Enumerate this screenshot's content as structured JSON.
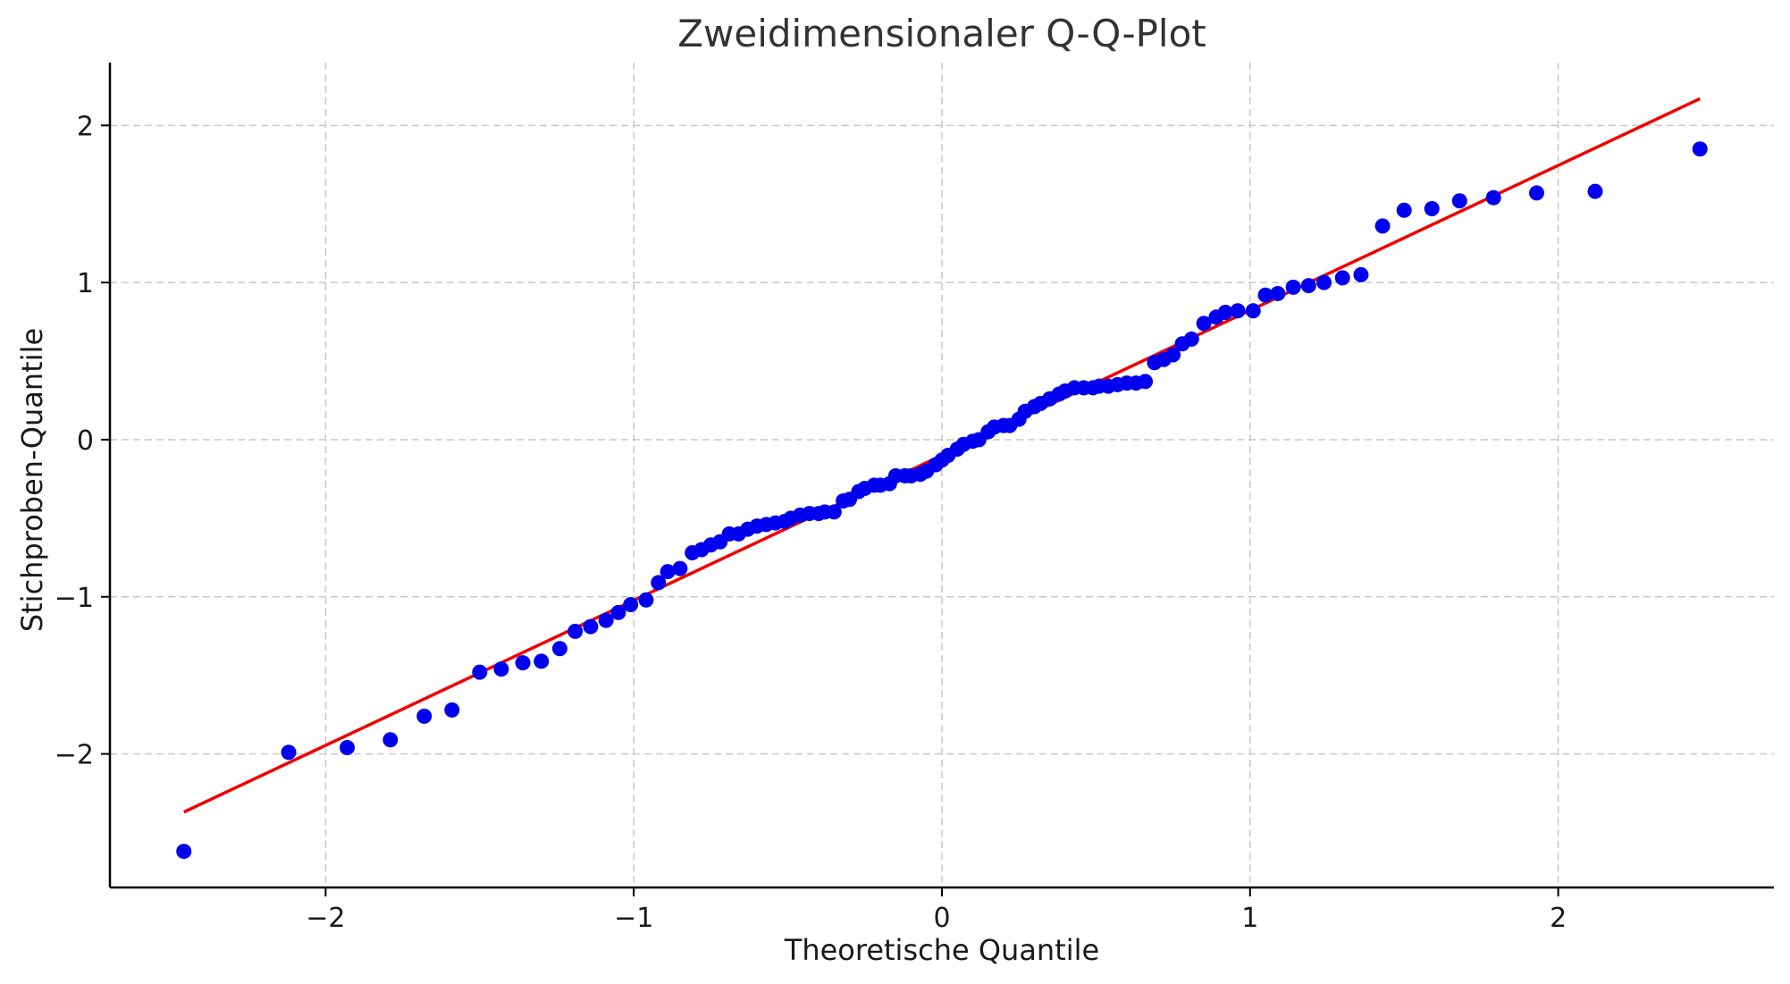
{
  "chart_data": {
    "type": "scatter",
    "title": "Zweidimensionaler Q-Q-Plot",
    "xlabel": "Theoretische Quantile",
    "ylabel": "Stichproben-Quantile",
    "xlim": [
      -2.7,
      2.7
    ],
    "ylim": [
      -2.85,
      2.4
    ],
    "xticks": [
      -2,
      -1,
      0,
      1,
      2
    ],
    "yticks": [
      -2,
      -1,
      0,
      1,
      2
    ],
    "xtick_labels": [
      "−2",
      "−1",
      "0",
      "1",
      "2"
    ],
    "ytick_labels": [
      "−2",
      "−1",
      "0",
      "1",
      "2"
    ],
    "grid": true,
    "point_color": "#0000ee",
    "line_color": "#ee0000",
    "series": [
      {
        "kind": "points",
        "x": [
          -2.46,
          -2.12,
          -1.93,
          -1.79,
          -1.68,
          -1.59,
          -1.5,
          -1.43,
          -1.36,
          -1.3,
          -1.24,
          -1.19,
          -1.14,
          -1.09,
          -1.05,
          -1.01,
          -0.96,
          -0.92,
          -0.89,
          -0.85,
          -0.81,
          -0.78,
          -0.75,
          -0.72,
          -0.69,
          -0.66,
          -0.63,
          -0.6,
          -0.57,
          -0.54,
          -0.51,
          -0.49,
          -0.46,
          -0.43,
          -0.4,
          -0.38,
          -0.35,
          -0.32,
          -0.3,
          -0.27,
          -0.25,
          -0.22,
          -0.2,
          -0.17,
          -0.15,
          -0.12,
          -0.1,
          -0.07,
          -0.05,
          -0.02,
          0.0,
          0.02,
          0.05,
          0.07,
          0.1,
          0.12,
          0.15,
          0.17,
          0.2,
          0.22,
          0.25,
          0.27,
          0.3,
          0.32,
          0.35,
          0.38,
          0.4,
          0.43,
          0.46,
          0.49,
          0.51,
          0.54,
          0.57,
          0.6,
          0.63,
          0.66,
          0.69,
          0.72,
          0.75,
          0.78,
          0.81,
          0.85,
          0.89,
          0.92,
          0.96,
          1.01,
          1.05,
          1.09,
          1.14,
          1.19,
          1.24,
          1.3,
          1.36,
          1.43,
          1.5,
          1.59,
          1.68,
          1.79,
          1.93,
          2.12,
          2.46
        ],
        "y": [
          -2.62,
          -1.99,
          -1.96,
          -1.91,
          -1.76,
          -1.72,
          -1.48,
          -1.46,
          -1.42,
          -1.41,
          -1.33,
          -1.22,
          -1.19,
          -1.15,
          -1.1,
          -1.05,
          -1.02,
          -0.91,
          -0.84,
          -0.82,
          -0.72,
          -0.7,
          -0.67,
          -0.65,
          -0.6,
          -0.6,
          -0.57,
          -0.55,
          -0.54,
          -0.53,
          -0.52,
          -0.5,
          -0.48,
          -0.47,
          -0.47,
          -0.46,
          -0.46,
          -0.39,
          -0.38,
          -0.33,
          -0.31,
          -0.29,
          -0.29,
          -0.28,
          -0.23,
          -0.23,
          -0.23,
          -0.22,
          -0.2,
          -0.16,
          -0.13,
          -0.1,
          -0.06,
          -0.03,
          -0.01,
          0.0,
          0.05,
          0.08,
          0.09,
          0.09,
          0.13,
          0.18,
          0.21,
          0.23,
          0.26,
          0.29,
          0.31,
          0.33,
          0.33,
          0.33,
          0.34,
          0.34,
          0.35,
          0.36,
          0.36,
          0.37,
          0.49,
          0.51,
          0.54,
          0.61,
          0.64,
          0.74,
          0.78,
          0.81,
          0.82,
          0.82,
          0.92,
          0.93,
          0.97,
          0.98,
          1.0,
          1.03,
          1.05,
          1.36,
          1.46,
          1.47,
          1.52,
          1.54,
          1.57,
          1.58,
          1.85
        ]
      },
      {
        "kind": "line",
        "x": [
          -2.46,
          2.46
        ],
        "y": [
          -2.37,
          2.17
        ]
      }
    ]
  }
}
